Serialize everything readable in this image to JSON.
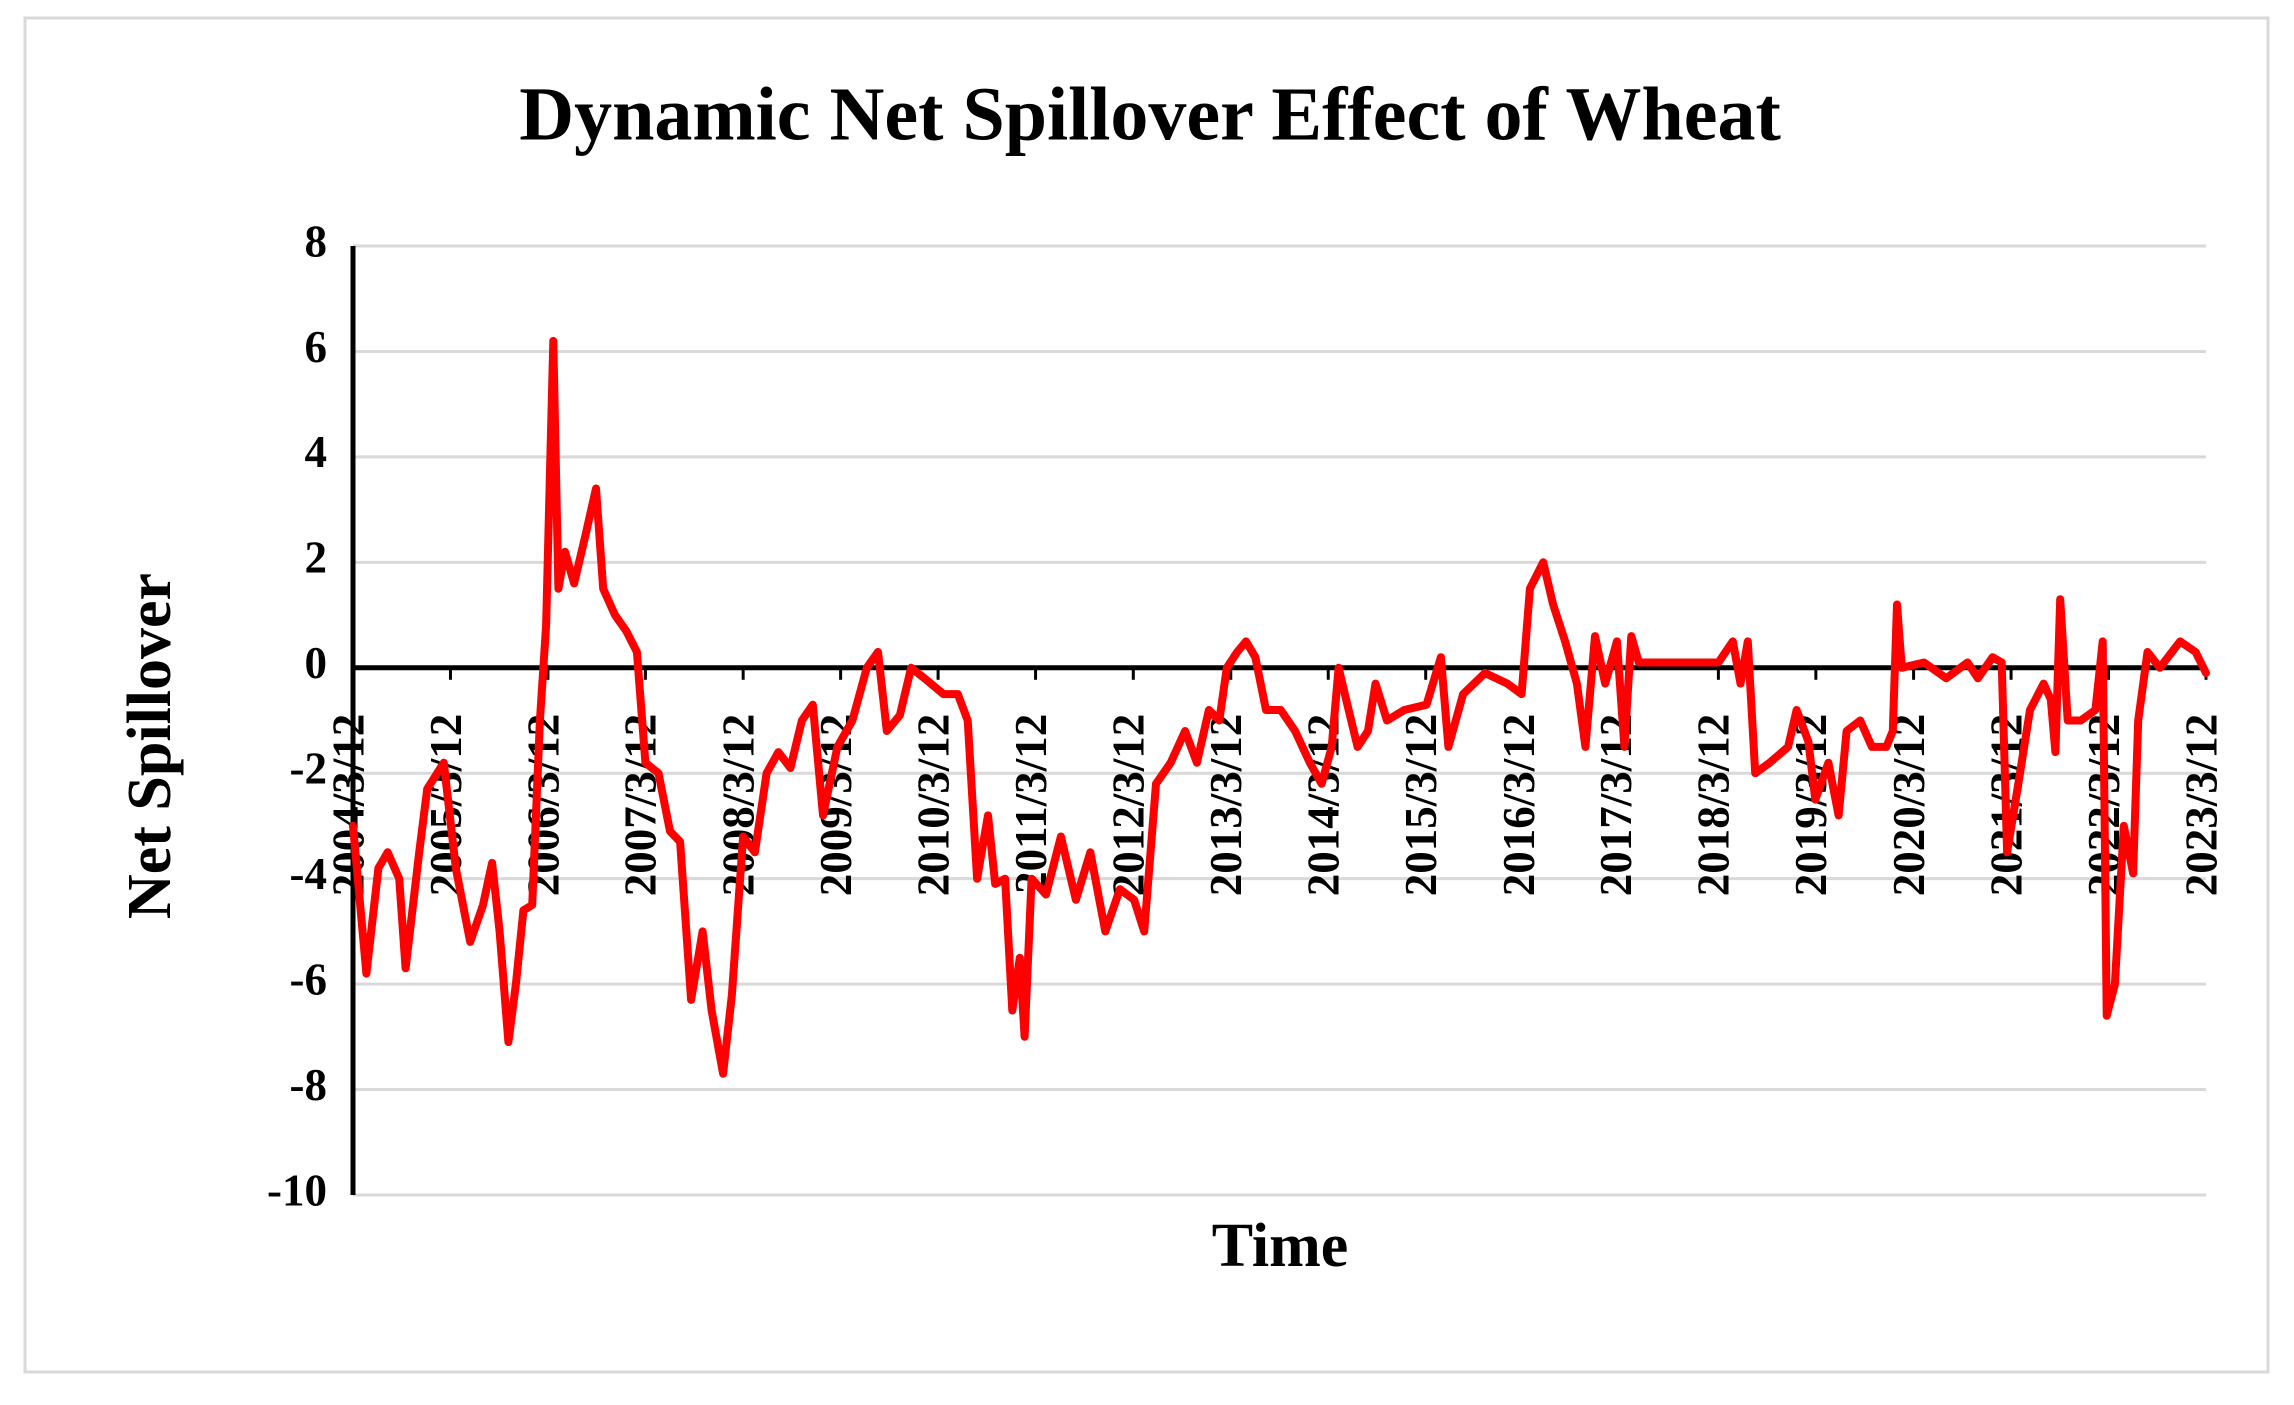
{
  "chart_data": {
    "type": "line",
    "title": "Dynamic Net Spillover Effect of Wheat",
    "x_label": "Time",
    "y_label": "Net Spillover",
    "x": [
      "2004/3/12",
      "2004/5/1",
      "2004/6/15",
      "2004/7/20",
      "2004/9/1",
      "2004/9/25",
      "2004/11/15",
      "2004/12/15",
      "2005/2/15",
      "2005/4/1",
      "2005/5/25",
      "2005/7/12",
      "2005/8/15",
      "2005/9/12",
      "2005/10/15",
      "2005/11/12",
      "2005/12/10",
      "2006/1/12",
      "2006/2/10",
      "2006/3/5",
      "2006/4/1",
      "2006/4/20",
      "2006/5/15",
      "2006/6/18",
      "2006/7/30",
      "2006/9/8",
      "2006/10/5",
      "2006/11/18",
      "2006/12/30",
      "2007/2/8",
      "2007/3/12",
      "2007/4/30",
      "2007/6/12",
      "2007/7/20",
      "2007/8/30",
      "2007/10/12",
      "2007/11/15",
      "2007/12/28",
      "2008/1/30",
      "2008/3/12",
      "2008/4/25",
      "2008/6/8",
      "2008/7/22",
      "2008/9/5",
      "2008/10/18",
      "2008/11/28",
      "2009/1/5",
      "2009/2/28",
      "2009/4/25",
      "2009/6/18",
      "2009/7/30",
      "2009/9/1",
      "2009/10/20",
      "2009/12/1",
      "2010/1/20",
      "2010/4/1",
      "2010/5/25",
      "2010/7/1",
      "2010/8/5",
      "2010/9/15",
      "2010/10/12",
      "2010/11/18",
      "2010/12/15",
      "2011/1/12",
      "2011/1/30",
      "2011/2/25",
      "2011/4/20",
      "2011/6/15",
      "2011/8/10",
      "2011/10/3",
      "2011/11/28",
      "2012/1/22",
      "2012/3/15",
      "2012/4/22",
      "2012/6/5",
      "2012/7/30",
      "2012/9/22",
      "2012/11/5",
      "2012/12/20",
      "2013/1/28",
      "2013/2/25",
      "2013/4/5",
      "2013/5/8",
      "2013/6/12",
      "2013/7/22",
      "2013/9/15",
      "2013/11/8",
      "2014/1/2",
      "2014/2/15",
      "2014/3/25",
      "2014/4/20",
      "2014/5/18",
      "2014/6/30",
      "2014/8/8",
      "2014/9/5",
      "2014/10/18",
      "2014/12/22",
      "2015/3/15",
      "2015/5/8",
      "2015/6/5",
      "2015/7/30",
      "2015/10/20",
      "2016/1/12",
      "2016/3/5",
      "2016/4/5",
      "2016/5/25",
      "2016/7/1",
      "2016/8/15",
      "2016/9/28",
      "2016/10/30",
      "2016/12/5",
      "2017/1/12",
      "2017/2/25",
      "2017/3/25",
      "2017/4/20",
      "2017/5/18",
      "2017/10/28",
      "2018/3/12",
      "2018/5/5",
      "2018/6/3",
      "2018/6/30",
      "2018/7/28",
      "2018/9/20",
      "2018/11/28",
      "2018/12/30",
      "2019/2/12",
      "2019/3/10",
      "2019/4/28",
      "2019/6/5",
      "2019/7/5",
      "2019/8/25",
      "2019/10/8",
      "2019/12/1",
      "2019/12/25",
      "2020/1/10",
      "2020/1/28",
      "2020/4/20",
      "2020/7/12",
      "2020/9/30",
      "2020/11/8",
      "2021/1/2",
      "2021/2/5",
      "2021/2/25",
      "2021/4/8",
      "2021/5/22",
      "2021/7/12",
      "2021/8/8",
      "2021/8/25",
      "2021/9/12",
      "2021/10/10",
      "2021/11/28",
      "2022/1/22",
      "2022/2/18",
      "2022/3/5",
      "2022/4/5",
      "2022/5/8",
      "2022/6/12",
      "2022/7/1",
      "2022/8/5",
      "2022/9/20",
      "2022/12/5",
      "2023/2/1",
      "2023/3/12"
    ],
    "series": [
      {
        "name": "Net Spillover",
        "color": "#ff0000",
        "values": [
          -3,
          -5.8,
          -3.8,
          -3.5,
          -4,
          -5.7,
          -3.5,
          -2.3,
          -1.8,
          -3.8,
          -5.2,
          -4.5,
          -3.7,
          -5,
          -7.1,
          -6,
          -4.6,
          -4.5,
          -1,
          0.8,
          6.2,
          1.5,
          2.2,
          1.6,
          2.5,
          3.4,
          1.5,
          1,
          0.7,
          0.3,
          -1.8,
          -2,
          -3.1,
          -3.3,
          -6.3,
          -5,
          -6.5,
          -7.7,
          -6.2,
          -3.2,
          -3.5,
          -2,
          -1.6,
          -1.9,
          -1,
          -0.7,
          -2.8,
          -1.5,
          -1,
          0,
          0.3,
          -1.2,
          -0.9,
          0,
          -0.2,
          -0.5,
          -0.5,
          -1,
          -4,
          -2.8,
          -4.1,
          -4,
          -6.5,
          -5.5,
          -7,
          -4,
          -4.3,
          -3.2,
          -4.4,
          -3.5,
          -5,
          -4.2,
          -4.4,
          -5,
          -2.2,
          -1.8,
          -1.2,
          -1.8,
          -0.8,
          -1,
          0,
          0.3,
          0.5,
          0.2,
          -0.8,
          -0.8,
          -1.2,
          -1.8,
          -2.2,
          -1.5,
          0,
          -0.6,
          -1.5,
          -1.2,
          -0.3,
          -1,
          -0.8,
          -0.7,
          0.2,
          -1.5,
          -0.5,
          -0.1,
          -0.3,
          -0.5,
          1.5,
          2,
          1.2,
          0.5,
          -0.3,
          -1.5,
          0.6,
          -0.3,
          0.5,
          -1.5,
          0.6,
          0.1,
          0.1,
          0.1,
          0.5,
          -0.3,
          0.5,
          -2,
          -1.8,
          -1.5,
          -0.8,
          -1.4,
          -2.5,
          -1.8,
          -2.8,
          -1.2,
          -1,
          -1.5,
          -1.5,
          -1.2,
          1.2,
          0,
          0.1,
          -0.2,
          0.1,
          -0.2,
          0.2,
          0.1,
          -3.5,
          -2.2,
          -0.8,
          -0.3,
          -0.6,
          -1.6,
          1.3,
          -1,
          -1,
          -0.8,
          0.5,
          -6.6,
          -6,
          -3,
          -3.9,
          -1,
          0.3,
          0,
          0.5,
          0.3,
          -0.1
        ]
      }
    ],
    "xlim": [
      "2004/3/12",
      "2023/3/12"
    ],
    "xticks": [
      "2004/3/12",
      "2005/3/12",
      "2006/3/12",
      "2007/3/12",
      "2008/3/12",
      "2009/3/12",
      "2010/3/12",
      "2011/3/12",
      "2012/3/12",
      "2013/3/12",
      "2014/3/12",
      "2015/3/12",
      "2016/3/12",
      "2017/3/12",
      "2018/3/12",
      "2019/3/12",
      "2020/3/12",
      "2021/3/12",
      "2022/3/12",
      "2023/3/12"
    ],
    "ylim": [
      -10,
      8
    ],
    "yticks": [
      -10,
      -8,
      -6,
      -4,
      -2,
      0,
      2,
      4,
      6,
      8
    ],
    "grid": true
  }
}
